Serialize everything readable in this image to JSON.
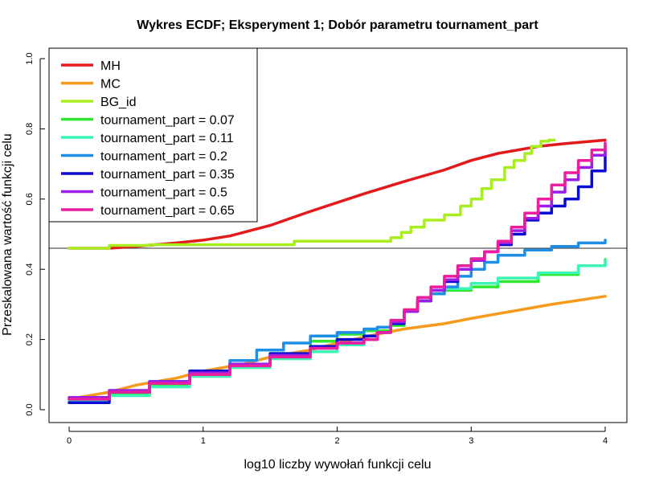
{
  "chart_data": {
    "type": "line",
    "title": "Wykres ECDF; Eksperyment 1; Dobór parametru tournament_part",
    "xlabel": "log10 liczby wywołań funkcji celu",
    "ylabel": "Przeskalowana wartość funkcji celu",
    "xlim": [
      0,
      4
    ],
    "ylim": [
      0,
      1
    ],
    "x_ticks": [
      "0",
      "1",
      "2",
      "3",
      "4"
    ],
    "y_ticks": [
      "0.0",
      "0.2",
      "0.4",
      "0.6",
      "0.8",
      "1.0"
    ],
    "legend_position": "top-left",
    "grid": false,
    "reference_line": {
      "orientation": "horizontal",
      "y": 0.46,
      "color": "#555555"
    },
    "series": [
      {
        "name": "MH",
        "color": "#e31a1c",
        "step": false,
        "x": [
          0,
          0.3,
          0.5,
          0.8,
          1.0,
          1.2,
          1.5,
          1.8,
          2.0,
          2.2,
          2.5,
          2.8,
          3.0,
          3.2,
          3.5,
          3.7,
          4.0
        ],
        "y": [
          0.46,
          0.46,
          0.465,
          0.475,
          0.483,
          0.495,
          0.525,
          0.565,
          0.59,
          0.615,
          0.65,
          0.683,
          0.71,
          0.73,
          0.75,
          0.758,
          0.768
        ]
      },
      {
        "name": "MC",
        "color": "#f59a1c",
        "step": false,
        "x": [
          0,
          0.3,
          0.5,
          0.8,
          1.0,
          1.3,
          1.5,
          1.8,
          2.0,
          2.3,
          2.5,
          2.8,
          3.0,
          3.3,
          3.6,
          4.0
        ],
        "y": [
          0.03,
          0.05,
          0.07,
          0.09,
          0.11,
          0.13,
          0.15,
          0.17,
          0.19,
          0.215,
          0.23,
          0.245,
          0.26,
          0.28,
          0.3,
          0.323
        ]
      },
      {
        "name": "BG_id",
        "color": "#a8ee1e",
        "step": true,
        "x": [
          0,
          0.3,
          0.6,
          1.0,
          1.5,
          1.68,
          2.0,
          2.2,
          2.4,
          2.48,
          2.55,
          2.65,
          2.8,
          2.92,
          3.0,
          3.08,
          3.15,
          3.25,
          3.32,
          3.4,
          3.45,
          3.52,
          3.58,
          3.62
        ],
        "y": [
          0.46,
          0.468,
          0.47,
          0.47,
          0.47,
          0.48,
          0.48,
          0.48,
          0.49,
          0.505,
          0.52,
          0.54,
          0.555,
          0.58,
          0.6,
          0.63,
          0.655,
          0.69,
          0.71,
          0.73,
          0.75,
          0.765,
          0.768,
          0.768
        ]
      },
      {
        "name": "tournament_part = 0.07",
        "color": "#2ee82e",
        "step": true,
        "x": [
          0,
          0.3,
          0.6,
          0.9,
          1.2,
          1.5,
          1.8,
          2.0,
          2.2,
          2.3,
          2.4,
          2.5,
          2.6,
          2.7,
          2.8,
          3.0,
          3.2,
          3.5,
          3.8,
          4.0
        ],
        "y": [
          0.025,
          0.045,
          0.07,
          0.1,
          0.13,
          0.16,
          0.195,
          0.215,
          0.225,
          0.225,
          0.24,
          0.28,
          0.31,
          0.33,
          0.34,
          0.35,
          0.365,
          0.385,
          0.41,
          0.428
        ]
      },
      {
        "name": "tournament_part = 0.11",
        "color": "#3cf5b4",
        "step": true,
        "x": [
          0,
          0.3,
          0.6,
          0.9,
          1.2,
          1.5,
          1.8,
          2.0,
          2.2,
          2.3,
          2.4,
          2.5,
          2.6,
          2.7,
          2.8,
          3.0,
          3.2,
          3.5,
          3.8,
          4.0
        ],
        "y": [
          0.025,
          0.04,
          0.065,
          0.095,
          0.12,
          0.145,
          0.165,
          0.185,
          0.2,
          0.22,
          0.245,
          0.28,
          0.31,
          0.33,
          0.345,
          0.36,
          0.375,
          0.39,
          0.41,
          0.425
        ]
      },
      {
        "name": "tournament_part = 0.2",
        "color": "#1e8fe6",
        "step": true,
        "x": [
          0,
          0.3,
          0.6,
          0.9,
          1.2,
          1.4,
          1.6,
          1.8,
          2.0,
          2.2,
          2.3,
          2.4,
          2.5,
          2.6,
          2.7,
          2.8,
          2.9,
          3.0,
          3.1,
          3.2,
          3.4,
          3.6,
          3.8,
          4.0
        ],
        "y": [
          0.03,
          0.05,
          0.08,
          0.11,
          0.14,
          0.17,
          0.19,
          0.21,
          0.22,
          0.23,
          0.235,
          0.25,
          0.28,
          0.31,
          0.33,
          0.35,
          0.38,
          0.4,
          0.42,
          0.44,
          0.455,
          0.465,
          0.475,
          0.483
        ]
      },
      {
        "name": "tournament_part = 0.35",
        "color": "#0a0ad2",
        "step": true,
        "x": [
          0,
          0.3,
          0.6,
          0.9,
          1.2,
          1.5,
          1.8,
          2.0,
          2.2,
          2.3,
          2.4,
          2.5,
          2.6,
          2.7,
          2.8,
          2.9,
          3.0,
          3.1,
          3.2,
          3.3,
          3.4,
          3.5,
          3.6,
          3.7,
          3.8,
          3.9,
          4.0
        ],
        "y": [
          0.02,
          0.05,
          0.08,
          0.11,
          0.13,
          0.16,
          0.18,
          0.2,
          0.21,
          0.22,
          0.245,
          0.28,
          0.31,
          0.34,
          0.365,
          0.4,
          0.43,
          0.45,
          0.47,
          0.5,
          0.54,
          0.56,
          0.58,
          0.6,
          0.635,
          0.68,
          0.74
        ]
      },
      {
        "name": "tournament_part = 0.5",
        "color": "#9b1ee6",
        "step": true,
        "x": [
          0,
          0.3,
          0.6,
          0.9,
          1.2,
          1.5,
          1.8,
          2.0,
          2.2,
          2.3,
          2.4,
          2.5,
          2.6,
          2.7,
          2.8,
          2.9,
          3.0,
          3.1,
          3.2,
          3.3,
          3.4,
          3.5,
          3.6,
          3.7,
          3.8,
          3.9,
          4.0
        ],
        "y": [
          0.035,
          0.055,
          0.08,
          0.105,
          0.13,
          0.155,
          0.175,
          0.19,
          0.2,
          0.22,
          0.25,
          0.28,
          0.31,
          0.34,
          0.37,
          0.4,
          0.425,
          0.45,
          0.475,
          0.51,
          0.545,
          0.58,
          0.62,
          0.655,
          0.69,
          0.725,
          0.755
        ]
      },
      {
        "name": "tournament_part = 0.65",
        "color": "#ec1ea0",
        "step": true,
        "x": [
          0,
          0.3,
          0.6,
          0.9,
          1.2,
          1.5,
          1.8,
          2.0,
          2.2,
          2.3,
          2.4,
          2.5,
          2.6,
          2.7,
          2.8,
          2.9,
          3.0,
          3.1,
          3.2,
          3.3,
          3.4,
          3.5,
          3.6,
          3.7,
          3.8,
          3.9,
          4.0
        ],
        "y": [
          0.03,
          0.05,
          0.075,
          0.1,
          0.125,
          0.15,
          0.175,
          0.19,
          0.2,
          0.22,
          0.255,
          0.285,
          0.32,
          0.35,
          0.38,
          0.41,
          0.43,
          0.45,
          0.48,
          0.52,
          0.56,
          0.6,
          0.64,
          0.675,
          0.71,
          0.74,
          0.76
        ]
      }
    ]
  }
}
